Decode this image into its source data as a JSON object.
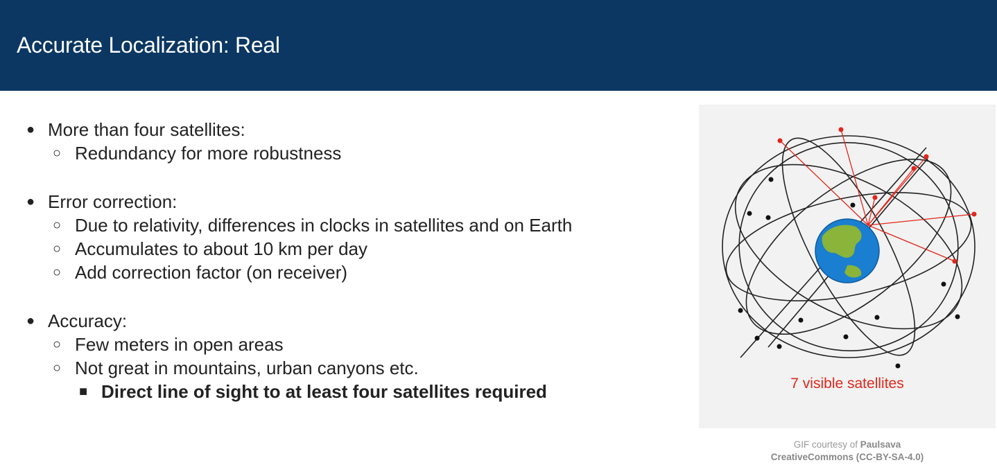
{
  "slide": {
    "title": "Accurate Localization: Real"
  },
  "bullets": {
    "b1": "More than four satellites:",
    "b1_1": "Redundancy for more robustness",
    "b2": "Error correction:",
    "b2_1": "Due to relativity, differences in clocks in satellites and on Earth",
    "b2_2": "Accumulates to about 10 km per day",
    "b2_3": "Add correction factor (on receiver)",
    "b3": "Accuracy:",
    "b3_1": "Few meters in open areas",
    "b3_2": "Not great in mountains, urban canyons etc.",
    "b3_2_1": "Direct line of sight to at least four satellites required"
  },
  "figure": {
    "caption": "7 visible satellites",
    "visible_satellites": 7,
    "colors": {
      "visible": "#e2261a",
      "hidden": "#111111",
      "ocean": "#1a7fd0",
      "land": "#8ab43a"
    }
  },
  "credit": {
    "line1_prefix": "GIF courtesy of ",
    "line1_author": "Paulsava",
    "line2": "CreativeCommons (CC-BY-SA-4.0)"
  }
}
